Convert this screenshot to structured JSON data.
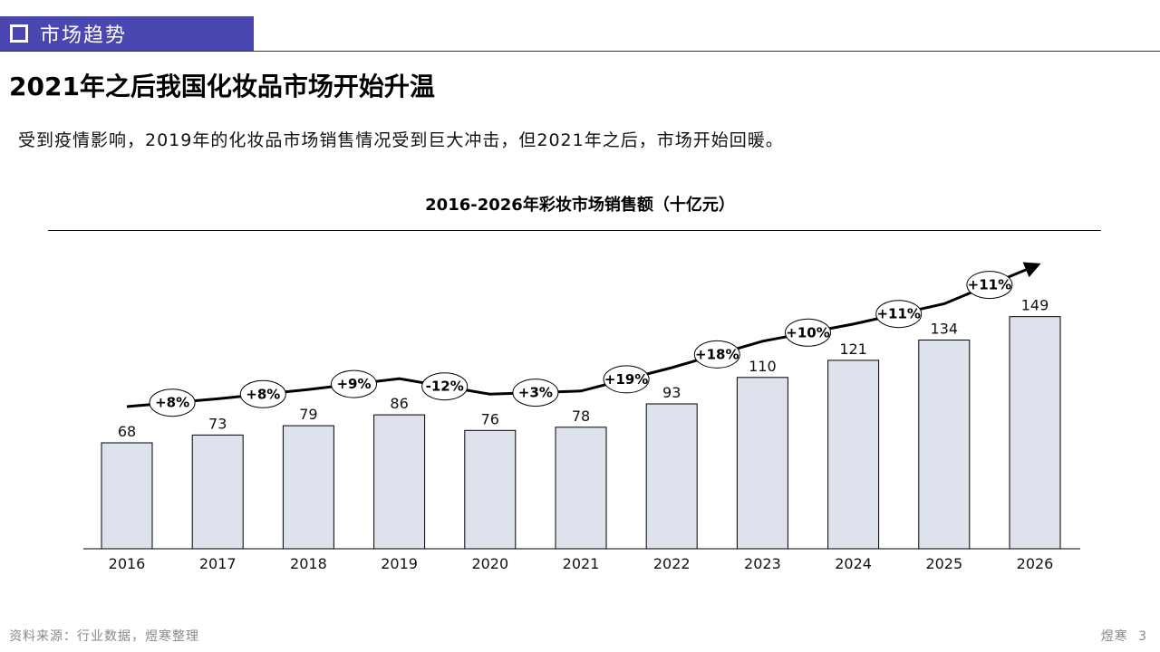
{
  "header": {
    "section_label": "市场趋势",
    "title": "2021年之后我国化妆品市场开始升温",
    "subtitle": "受到疫情影响，2019年的化妆品市场销售情况受到巨大冲击，但2021年之后，市场开始回暖。"
  },
  "colors": {
    "accent": "#4a47b0",
    "bar_fill": "#dde2ec",
    "bar_stroke": "#000000",
    "trend_line": "#000000"
  },
  "chart_data": {
    "type": "bar",
    "title": "2016-2026年彩妆市场销售额（十亿元）",
    "categories": [
      "2016",
      "2017",
      "2018",
      "2019",
      "2020",
      "2021",
      "2022",
      "2023",
      "2024",
      "2025",
      "2026"
    ],
    "values": [
      68,
      73,
      79,
      86,
      76,
      78,
      93,
      110,
      121,
      134,
      149
    ],
    "growth_labels": [
      "+8%",
      "+8%",
      "+9%",
      "-12%",
      "+3%",
      "+19%",
      "+18%",
      "+10%",
      "+11%",
      "+11%"
    ],
    "ylim": [
      0,
      160
    ],
    "grid": false,
    "legend": "none"
  },
  "footer": {
    "source": "资料来源：行业数据，煜寒整理",
    "brand": "煜寒",
    "page_number": "3"
  }
}
